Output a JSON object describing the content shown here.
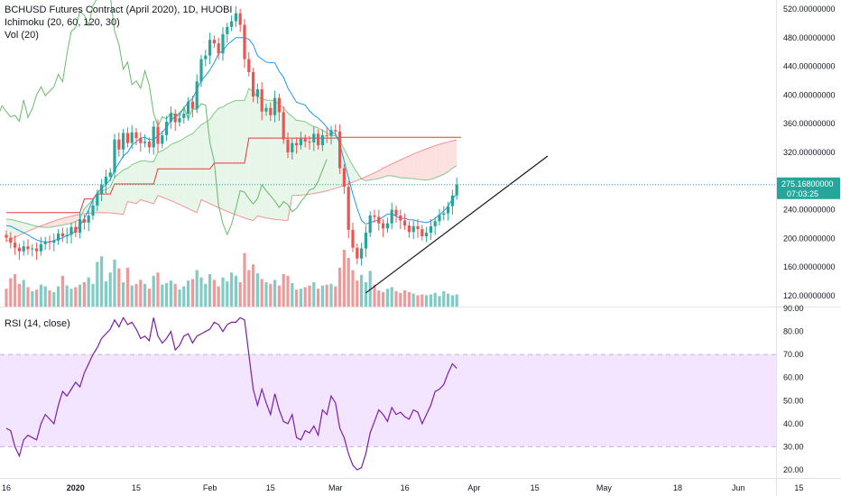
{
  "price_pane": {
    "title": "BCHUSD Futures Contract (April 2020), 1D, HUOBI",
    "indicators": [
      "Ichimoku (20, 60, 120, 30)",
      "Vol (20)"
    ],
    "last_price_label": "275.16800000",
    "countdown_label": "07:03:25"
  },
  "rsi_pane": {
    "title": "RSI (14, close)"
  },
  "colors": {
    "up": "#26a69a",
    "down": "#ef5350",
    "vol_up": "#80cbc4",
    "vol_down": "#ef9a9a",
    "tenkan": "#2196f3",
    "kijun": "#e53935",
    "chikou": "#4caf50",
    "cloud_bull": "#e8f5e9",
    "cloud_bear": "#fde0e0",
    "rsi": "#7b1fa2",
    "rsi_band": "#f3e5ff",
    "last_price": "#26a69a"
  },
  "chart_data": [
    {
      "type": "candlestick",
      "title": "BCHUSD Futures Contract (April 2020), 1D, HUOBI",
      "ylim": [
        110,
        530
      ],
      "y_ticks": [
        "520.00000000",
        "480.00000000",
        "440.00000000",
        "400.00000000",
        "360.00000000",
        "320.00000000",
        "280.00000000",
        "240.00000000",
        "200.00000000",
        "160.00000000",
        "120.00000000"
      ],
      "y_tick_values": [
        520,
        480,
        440,
        400,
        360,
        320,
        280,
        240,
        200,
        160,
        120
      ],
      "x_ticks": [
        "16",
        "2020",
        "15",
        "Feb",
        "15",
        "Mar",
        "16",
        "Apr",
        "15",
        "May",
        "18",
        "Jun",
        "15"
      ],
      "x_tick_days": [
        0,
        16,
        30,
        47,
        61,
        76,
        92,
        108,
        122,
        138,
        155,
        169,
        183
      ],
      "day0": "2019-12-16",
      "close": [
        201,
        194,
        187,
        182,
        189,
        185,
        186,
        182,
        192,
        196,
        194,
        197,
        207,
        203,
        205,
        216,
        208,
        227,
        222,
        232,
        246,
        262,
        275,
        286,
        292,
        338,
        324,
        347,
        333,
        348,
        340,
        333,
        335,
        327,
        356,
        332,
        344,
        363,
        374,
        362,
        368,
        374,
        391,
        381,
        419,
        450,
        455,
        477,
        472,
        458,
        485,
        495,
        503,
        514,
        498,
        450,
        432,
        398,
        408,
        377,
        382,
        372,
        396,
        376,
        338,
        320,
        333,
        330,
        339,
        335,
        334,
        346,
        330,
        344,
        343,
        351,
        349,
        298,
        272,
        212,
        187,
        172,
        186,
        208,
        232,
        230,
        221,
        214,
        221,
        240,
        232,
        225,
        218,
        209,
        217,
        213,
        203,
        208,
        217,
        224,
        233,
        235,
        245,
        260,
        275
      ],
      "open": [
        205,
        201,
        194,
        187,
        182,
        189,
        185,
        186,
        182,
        192,
        196,
        194,
        197,
        207,
        203,
        205,
        216,
        208,
        227,
        222,
        232,
        246,
        262,
        275,
        286,
        292,
        338,
        324,
        347,
        333,
        348,
        340,
        333,
        335,
        327,
        356,
        332,
        344,
        363,
        374,
        362,
        368,
        374,
        391,
        381,
        419,
        450,
        455,
        477,
        472,
        458,
        485,
        495,
        503,
        514,
        498,
        450,
        432,
        398,
        408,
        377,
        382,
        372,
        396,
        376,
        338,
        320,
        333,
        330,
        339,
        335,
        334,
        346,
        330,
        344,
        343,
        351,
        349,
        298,
        272,
        212,
        187,
        172,
        186,
        208,
        232,
        230,
        221,
        214,
        221,
        240,
        232,
        225,
        218,
        209,
        217,
        213,
        203,
        208,
        217,
        224,
        233,
        235,
        245,
        260
      ],
      "volume": [
        22,
        35,
        40,
        28,
        33,
        24,
        19,
        21,
        27,
        25,
        20,
        18,
        25,
        38,
        26,
        22,
        24,
        27,
        30,
        36,
        28,
        55,
        62,
        31,
        42,
        58,
        47,
        30,
        48,
        26,
        28,
        33,
        28,
        22,
        38,
        42,
        27,
        29,
        32,
        28,
        21,
        25,
        32,
        34,
        45,
        36,
        28,
        40,
        33,
        25,
        36,
        31,
        42,
        38,
        30,
        66,
        45,
        52,
        41,
        34,
        30,
        28,
        33,
        26,
        40,
        38,
        29,
        21,
        22,
        24,
        26,
        30,
        22,
        26,
        27,
        28,
        25,
        48,
        70,
        60,
        45,
        32,
        39,
        30,
        44,
        27,
        20,
        18,
        22,
        24,
        19,
        17,
        20,
        18,
        16,
        14,
        15,
        14,
        15,
        17,
        13,
        19,
        16,
        14,
        15
      ],
      "tenkan": [
        218,
        217,
        214,
        211,
        208,
        205,
        201,
        198,
        196,
        195,
        195,
        197,
        199,
        201,
        204,
        206,
        211,
        218,
        228,
        240,
        254,
        264,
        270,
        275,
        282,
        295,
        305,
        315,
        320,
        330,
        335,
        340,
        341,
        338,
        338,
        343,
        348,
        355,
        365,
        370,
        375,
        382,
        390,
        395,
        408,
        420,
        427,
        435,
        445,
        458,
        462,
        470,
        475,
        480,
        480,
        480,
        478,
        470,
        455,
        450,
        446,
        445,
        445,
        433,
        425,
        410,
        400,
        390,
        388,
        386,
        378,
        372,
        368,
        362,
        355,
        348,
        346,
        332,
        308,
        285,
        262,
        242,
        225,
        220,
        222,
        224,
        226,
        230,
        234,
        234,
        231,
        228,
        228,
        226,
        226,
        224,
        223,
        222,
        224,
        228,
        233,
        238,
        245,
        255,
        262
      ],
      "kijun": [
        236,
        236,
        236,
        236,
        236,
        236,
        236,
        236,
        236,
        236,
        236,
        236,
        236,
        236,
        236,
        236,
        236,
        236,
        255,
        255,
        255,
        262,
        262,
        262,
        262,
        276,
        276,
        276,
        276,
        276,
        276,
        276,
        276,
        276,
        276,
        297,
        297,
        297,
        297,
        297,
        297,
        297,
        297,
        297,
        297,
        297,
        297,
        297,
        305,
        305,
        305,
        305,
        305,
        305,
        305,
        305,
        340,
        340,
        340,
        340,
        340,
        340,
        340,
        340,
        340,
        340,
        340,
        340,
        340,
        340,
        340,
        340,
        340,
        340,
        340,
        340,
        340,
        341,
        341,
        341,
        341,
        341,
        341,
        341,
        341,
        341,
        341,
        341,
        341,
        341,
        341,
        341,
        341,
        341,
        341,
        341,
        341,
        341,
        341,
        341,
        341,
        341,
        341,
        341,
        341,
        341
      ],
      "cloud_a_end_offset": 30,
      "rsi_ylim": [
        15,
        92
      ],
      "rsi_ticks": [
        "90.00",
        "80.00",
        "70.00",
        "60.00",
        "50.00",
        "40.00",
        "30.00",
        "20.00"
      ],
      "rsi_tick_values": [
        90,
        80,
        70,
        60,
        50,
        40,
        30,
        20
      ],
      "rsi_band": [
        30,
        70
      ],
      "rsi": [
        38,
        37,
        30,
        26,
        33,
        35,
        34,
        33,
        40,
        44,
        42,
        40,
        48,
        54,
        52,
        55,
        58,
        56,
        62,
        66,
        70,
        73,
        77,
        79,
        81,
        85,
        82,
        86,
        83,
        84,
        81,
        77,
        78,
        76,
        86,
        78,
        75,
        77,
        80,
        72,
        74,
        78,
        79,
        75,
        78,
        79,
        80,
        81,
        84,
        83,
        80,
        83,
        84,
        84,
        86,
        85,
        70,
        55,
        48,
        55,
        49,
        44,
        53,
        46,
        41,
        40,
        44,
        34,
        33,
        37,
        36,
        39,
        35,
        46,
        44,
        52,
        49,
        38,
        34,
        27,
        22,
        20,
        21,
        27,
        36,
        41,
        46,
        44,
        41,
        47,
        44,
        45,
        43,
        42,
        46,
        45,
        40,
        44,
        48,
        54,
        55,
        57,
        62,
        66,
        64
      ],
      "trendline": [
        [
          83,
          124
        ],
        [
          125,
          315
        ]
      ]
    }
  ]
}
